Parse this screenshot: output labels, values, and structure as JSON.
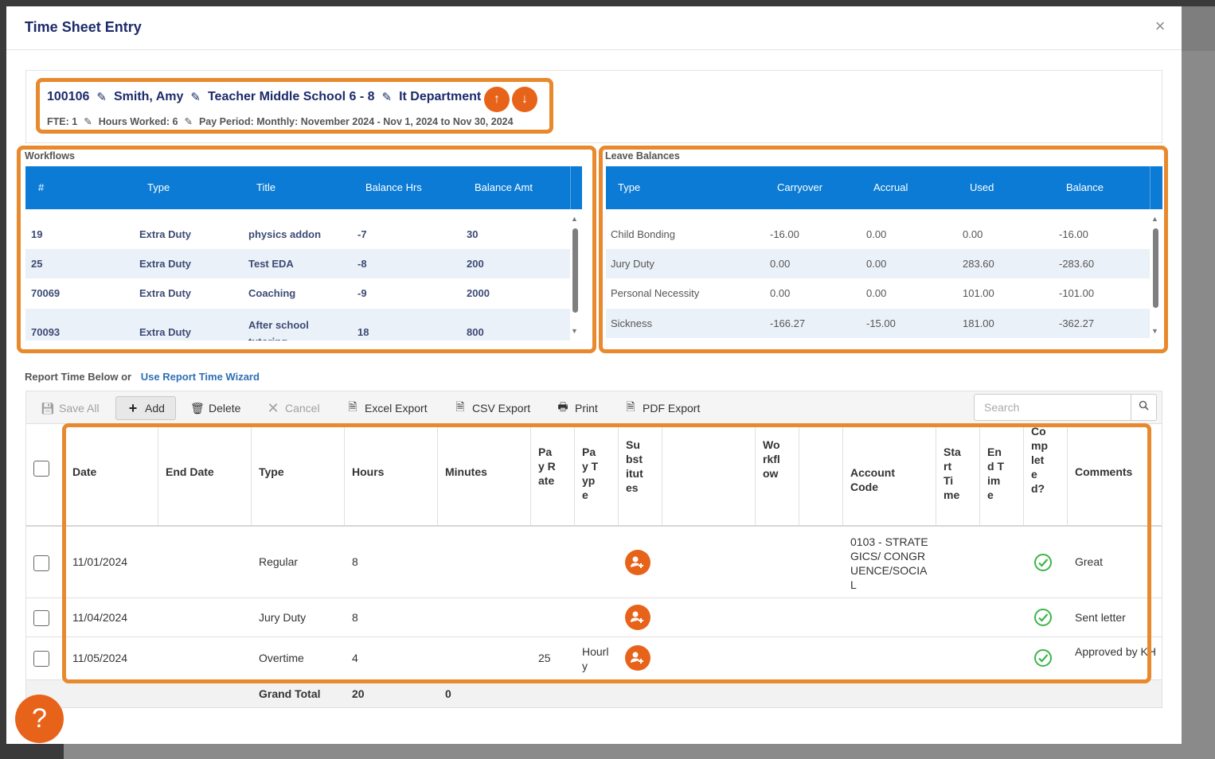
{
  "dialog": {
    "title": "Time Sheet Entry",
    "close": "×"
  },
  "employee": {
    "id": "100106",
    "name": "Smith, Amy",
    "position": "Teacher Middle School 6 - 8",
    "department": "It Department",
    "fte": "FTE: 1",
    "hours_worked": "Hours Worked: 6",
    "pay_period": "Pay Period: Monthly: November 2024 - Nov 1, 2024 to Nov 30, 2024",
    "prev_arrow": "↑",
    "next_arrow": "↓"
  },
  "workflows": {
    "label": "Workflows",
    "columns": [
      "#",
      "Type",
      "Title",
      "Balance Hrs",
      "Balance Amt"
    ],
    "rows": [
      {
        "num": "19",
        "type": "Extra Duty",
        "title": "physics addon",
        "hrs": "-7",
        "amt": "30"
      },
      {
        "num": "25",
        "type": "Extra Duty",
        "title": "Test EDA",
        "hrs": "-8",
        "amt": "200"
      },
      {
        "num": "70069",
        "type": "Extra Duty",
        "title": "Coaching",
        "hrs": "-9",
        "amt": "2000"
      },
      {
        "num": "70093",
        "type": "Extra Duty",
        "title": "After school tutoring",
        "hrs": "18",
        "amt": "800"
      }
    ]
  },
  "leave_balances": {
    "label": "Leave Balances",
    "columns": [
      "Type",
      "Carryover",
      "Accrual",
      "Used",
      "Balance"
    ],
    "rows": [
      {
        "type": "Child Bonding",
        "carryover": "-16.00",
        "accrual": "0.00",
        "used": "0.00",
        "balance": "-16.00"
      },
      {
        "type": "Jury Duty",
        "carryover": "0.00",
        "accrual": "0.00",
        "used": "283.60",
        "balance": "-283.60"
      },
      {
        "type": "Personal Necessity",
        "carryover": "0.00",
        "accrual": "0.00",
        "used": "101.00",
        "balance": "-101.00"
      },
      {
        "type": "Sickness",
        "carryover": "-166.27",
        "accrual": "-15.00",
        "used": "181.00",
        "balance": "-362.27"
      }
    ]
  },
  "report": {
    "prefix": "Report Time Below or",
    "wizard_link": "Use Report Time Wizard"
  },
  "toolbar": {
    "save_all": "Save All",
    "add": "Add",
    "delete": "Delete",
    "cancel": "Cancel",
    "excel_export": "Excel Export",
    "csv_export": "CSV Export",
    "print": "Print",
    "pdf_export": "PDF Export",
    "search_placeholder": "Search"
  },
  "grid": {
    "columns": {
      "date": "Date",
      "end_date": "End Date",
      "type": "Type",
      "hours": "Hours",
      "minutes": "Minutes",
      "pay_rate": "Pay Rate",
      "pay_type": "Pay Type",
      "substitutes": "Substitutes",
      "blank": "",
      "workflow": "Workflow",
      "blank2": "",
      "account_code": "Account Code",
      "start_time": "Start Time",
      "end_time": "End Time",
      "completed": "Completed?",
      "comments": "Comments"
    },
    "rows": [
      {
        "date": "11/01/2024",
        "type": "Regular",
        "hours": "8",
        "pay_rate": "",
        "pay_type": "",
        "account_code": "0103 - STRATEGICS/ CONGRUENCE/SOCIAL",
        "completed": true,
        "comments": "Great"
      },
      {
        "date": "11/04/2024",
        "type": "Jury Duty",
        "hours": "8",
        "pay_rate": "",
        "pay_type": "",
        "account_code": "",
        "completed": true,
        "comments": "Sent letter"
      },
      {
        "date": "11/05/2024",
        "type": "Overtime",
        "hours": "4",
        "pay_rate": "25",
        "pay_type": "Hourly",
        "account_code": "",
        "completed": true,
        "comments": "Approved by KH"
      }
    ],
    "total": {
      "label": "Grand Total",
      "hours": "20",
      "minutes": "0"
    }
  },
  "help": "?",
  "colors": {
    "accent_orange": "#e8631a",
    "highlight_orange": "#e8892e",
    "header_blue": "#0b7bd5",
    "title_navy": "#1d2b6b",
    "check_green": "#3cb54a"
  }
}
